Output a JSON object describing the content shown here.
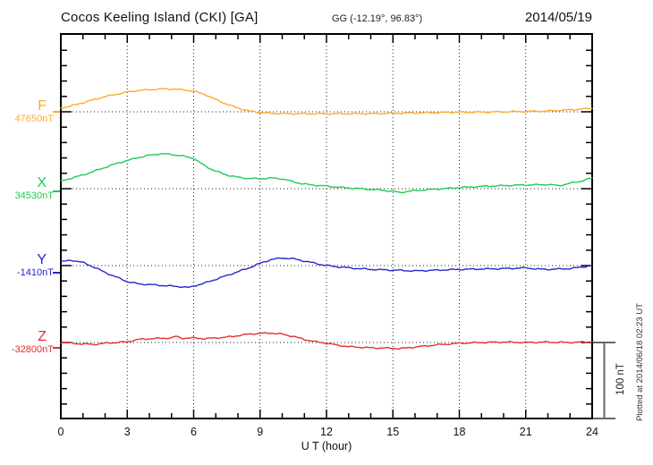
{
  "header": {
    "station_title": "Cocos Keeling Island (CKI)  [GA]",
    "geo_coords": "GG (-12.19°,  96.83°)",
    "date": "2014/05/19"
  },
  "footer": {
    "x_axis_label": "U T (hour)",
    "plot_note": "Plotted at 2014/06/18 02:23 UT"
  },
  "scale_bar": {
    "label": "100 nT",
    "nanotesla": 100
  },
  "chart_data": {
    "type": "line",
    "title": "Cocos Keeling Island (CKI) [GA] magnetogram",
    "xlabel": "U T (hour)",
    "x_range": [
      0,
      24
    ],
    "x_ticks": [
      0,
      3,
      6,
      9,
      12,
      15,
      18,
      21,
      24
    ],
    "grid": "dotted vertical lines every 3 hours, dotted horizontal reference line per component",
    "legend_position": "left margin, one colored label per component",
    "y_scale_note": "each series plotted as nT offset from its reference level; scale bar = 100 nT",
    "series": [
      {
        "name": "F",
        "reference_value": "47650nT",
        "color": "#FFAB2B",
        "points": [
          [
            0,
            5
          ],
          [
            0.5,
            8
          ],
          [
            1,
            12
          ],
          [
            1.5,
            16
          ],
          [
            2,
            20
          ],
          [
            2.5,
            23
          ],
          [
            3,
            26
          ],
          [
            3.5,
            28
          ],
          [
            4,
            29
          ],
          [
            4.5,
            30
          ],
          [
            5,
            30
          ],
          [
            5.5,
            29
          ],
          [
            6,
            27
          ],
          [
            6.5,
            23
          ],
          [
            7,
            16
          ],
          [
            7.5,
            10
          ],
          [
            8,
            5
          ],
          [
            8.5,
            1
          ],
          [
            9,
            -1
          ],
          [
            9.5,
            -2
          ],
          [
            10,
            -2.5
          ],
          [
            11,
            -2.5
          ],
          [
            12,
            -2.5
          ],
          [
            13,
            -2.5
          ],
          [
            14,
            -2.5
          ],
          [
            15,
            -2
          ],
          [
            16,
            -1.5
          ],
          [
            17,
            -1
          ],
          [
            18,
            -0.5
          ],
          [
            19,
            -0.5
          ],
          [
            20,
            0
          ],
          [
            21,
            0.5
          ],
          [
            22,
            1
          ],
          [
            23,
            2.5
          ],
          [
            23.5,
            3.5
          ],
          [
            24,
            4.5
          ]
        ]
      },
      {
        "name": "X",
        "reference_value": "34530nT",
        "color": "#1ECB52",
        "points": [
          [
            0,
            10
          ],
          [
            0.5,
            14
          ],
          [
            1,
            18
          ],
          [
            1.5,
            23
          ],
          [
            2,
            28
          ],
          [
            2.5,
            33
          ],
          [
            3,
            37
          ],
          [
            3.5,
            41
          ],
          [
            4,
            44
          ],
          [
            4.5,
            46
          ],
          [
            5,
            45
          ],
          [
            5.5,
            43
          ],
          [
            6,
            40
          ],
          [
            6.5,
            30
          ],
          [
            7,
            23
          ],
          [
            7.5,
            18
          ],
          [
            8,
            15
          ],
          [
            8.5,
            13.5
          ],
          [
            9,
            13
          ],
          [
            9.5,
            14
          ],
          [
            10,
            13
          ],
          [
            10.5,
            9
          ],
          [
            11,
            6
          ],
          [
            11.5,
            4.5
          ],
          [
            12,
            3.5
          ],
          [
            12.5,
            2
          ],
          [
            13,
            1
          ],
          [
            13.5,
            0
          ],
          [
            14,
            -1
          ],
          [
            14.5,
            -2
          ],
          [
            15,
            -3.5
          ],
          [
            15.3,
            -5
          ],
          [
            16,
            -2.5
          ],
          [
            17,
            -0.5
          ],
          [
            18,
            1.5
          ],
          [
            19,
            3
          ],
          [
            20,
            4
          ],
          [
            21,
            5
          ],
          [
            21.5,
            5
          ],
          [
            22,
            5.5
          ],
          [
            22.5,
            4
          ],
          [
            23,
            7
          ],
          [
            23.5,
            10
          ],
          [
            24,
            14
          ]
        ]
      },
      {
        "name": "Y",
        "reference_value": "-1410nT",
        "color": "#2626CE",
        "points": [
          [
            0,
            5
          ],
          [
            0.5,
            7
          ],
          [
            1,
            4
          ],
          [
            1.5,
            -2
          ],
          [
            2,
            -9
          ],
          [
            2.5,
            -15
          ],
          [
            3,
            -21
          ],
          [
            3.5,
            -24
          ],
          [
            4,
            -25
          ],
          [
            4.5,
            -26
          ],
          [
            5,
            -27
          ],
          [
            5.5,
            -28
          ],
          [
            5.8,
            -29
          ],
          [
            6,
            -27
          ],
          [
            6.5,
            -23
          ],
          [
            7,
            -18
          ],
          [
            7.5,
            -13
          ],
          [
            8,
            -8
          ],
          [
            8.5,
            -3
          ],
          [
            9,
            3
          ],
          [
            9.5,
            8
          ],
          [
            10,
            10
          ],
          [
            10.5,
            9
          ],
          [
            11,
            6
          ],
          [
            11.5,
            3
          ],
          [
            12,
            0
          ],
          [
            12.5,
            -1.5
          ],
          [
            13,
            -3
          ],
          [
            14,
            -5
          ],
          [
            15,
            -6
          ],
          [
            16,
            -7
          ],
          [
            17,
            -6
          ],
          [
            18,
            -5
          ],
          [
            19,
            -4.5
          ],
          [
            20,
            -4
          ],
          [
            21,
            -3
          ],
          [
            21.5,
            -4.5
          ],
          [
            22,
            -5
          ],
          [
            22.5,
            -4.5
          ],
          [
            23,
            -4
          ],
          [
            23.5,
            -2
          ],
          [
            24,
            0
          ]
        ]
      },
      {
        "name": "Z",
        "reference_value": "-32800nT",
        "color": "#E62E2E",
        "points": [
          [
            0,
            0
          ],
          [
            0.5,
            -1
          ],
          [
            1,
            -2
          ],
          [
            1.5,
            -2.5
          ],
          [
            2,
            -1
          ],
          [
            2.5,
            0
          ],
          [
            3,
            1
          ],
          [
            3.5,
            4
          ],
          [
            4,
            5
          ],
          [
            4.5,
            5.5
          ],
          [
            5,
            6
          ],
          [
            5.2,
            8
          ],
          [
            5.5,
            5.5
          ],
          [
            6,
            6
          ],
          [
            6.5,
            5
          ],
          [
            7,
            6
          ],
          [
            7.5,
            7
          ],
          [
            8,
            9
          ],
          [
            8.5,
            11
          ],
          [
            9,
            12
          ],
          [
            9.5,
            12.5
          ],
          [
            10,
            11
          ],
          [
            10.5,
            8
          ],
          [
            11,
            4
          ],
          [
            11.5,
            1
          ],
          [
            12,
            -1
          ],
          [
            12.5,
            -3.5
          ],
          [
            13,
            -5.5
          ],
          [
            14,
            -7
          ],
          [
            15,
            -7.5
          ],
          [
            15.3,
            -8
          ],
          [
            16,
            -6
          ],
          [
            17,
            -3
          ],
          [
            18,
            -1
          ],
          [
            19,
            0
          ],
          [
            20,
            0.5
          ],
          [
            21,
            0
          ],
          [
            22,
            0.5
          ],
          [
            23,
            0
          ],
          [
            24,
            1
          ]
        ]
      }
    ]
  }
}
